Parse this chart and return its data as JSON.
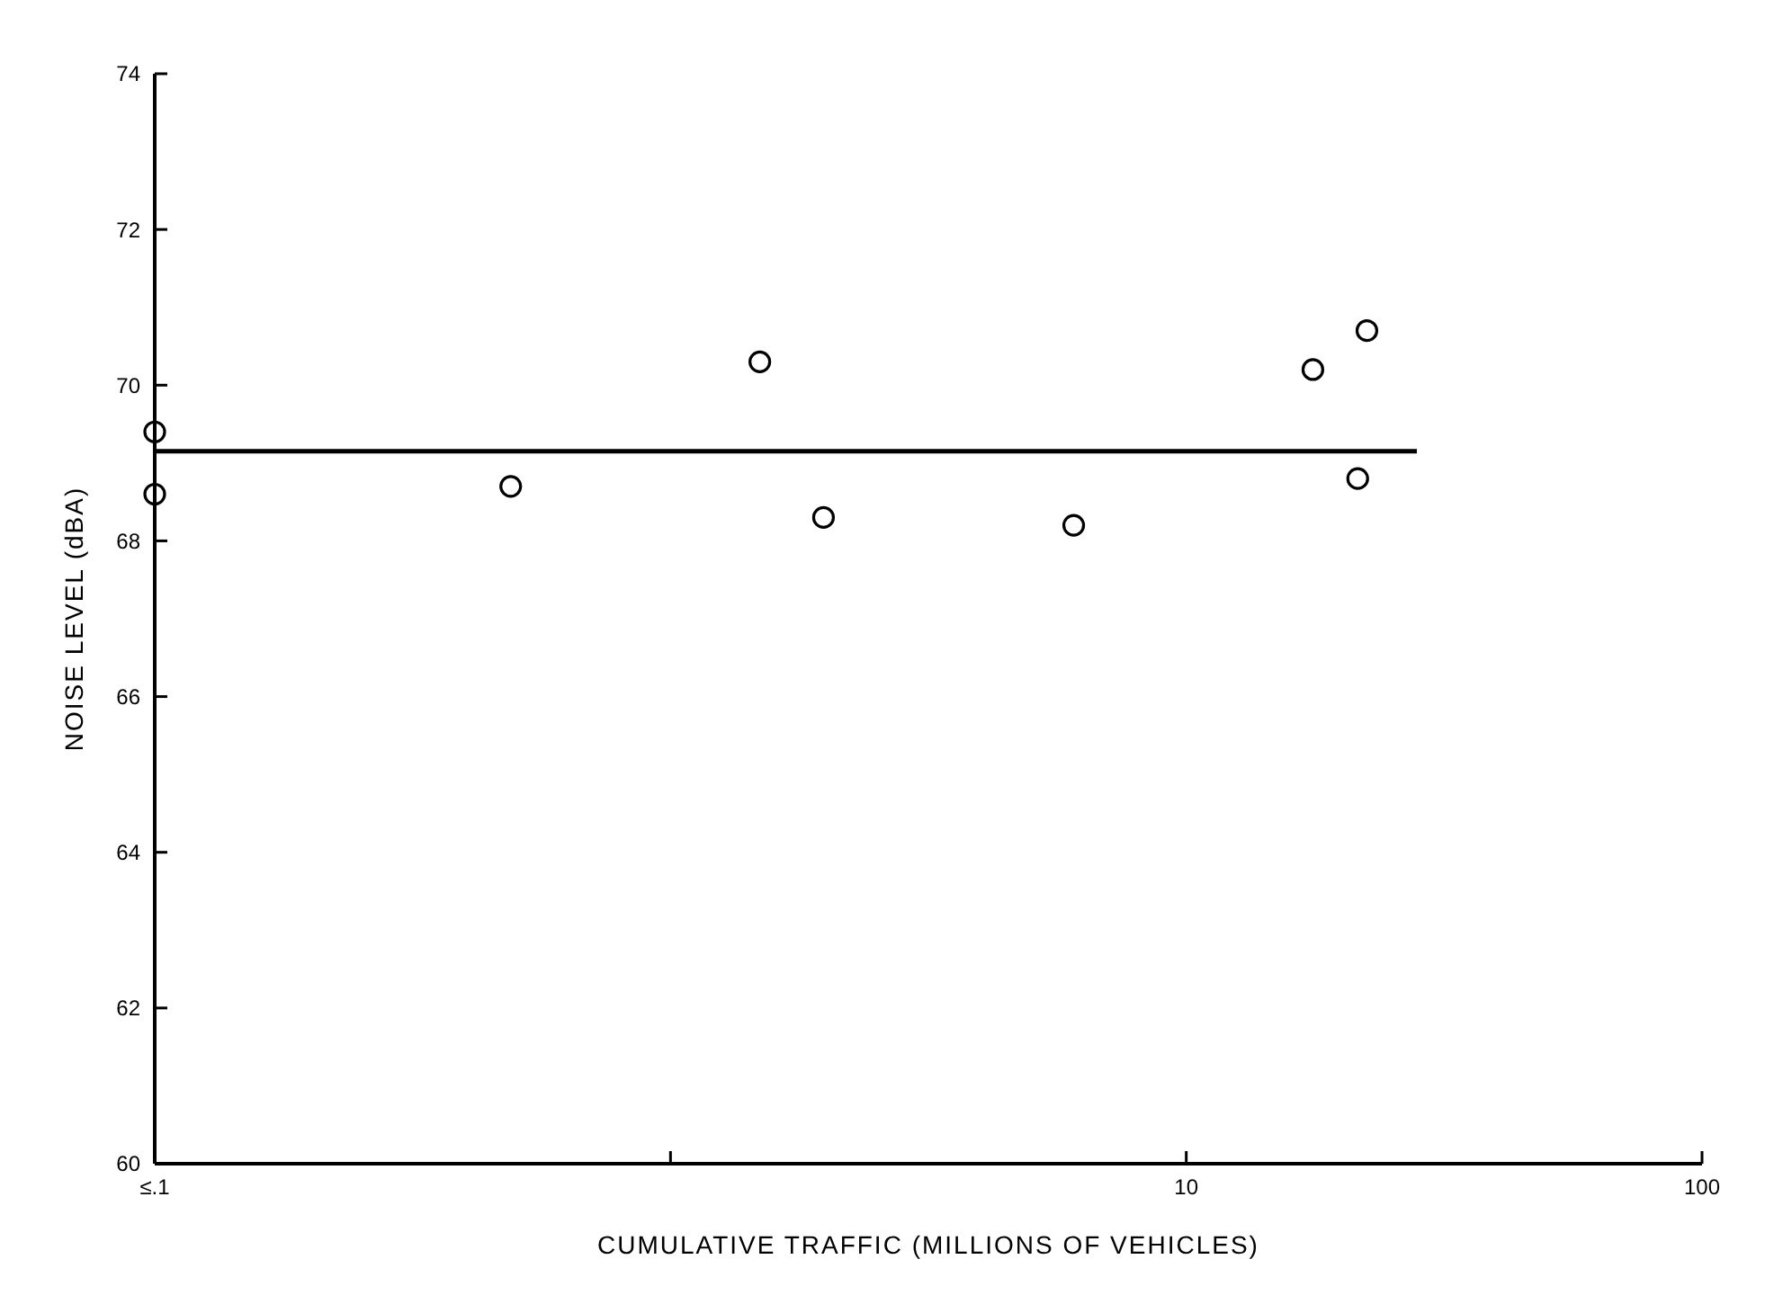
{
  "chart_data": {
    "type": "scatter",
    "xlabel": "CUMULATIVE TRAFFIC (MILLIONS OF VEHICLES)",
    "ylabel": "NOISE LEVEL (dBA)",
    "log": "x",
    "xlim": [
      0.1,
      100
    ],
    "xticks": [
      {
        "value": 0.1,
        "label": "≤.1"
      },
      {
        "value": 1,
        "label": null
      },
      10,
      100
    ],
    "ylim": [
      60,
      74
    ],
    "yticks": [
      60,
      62,
      64,
      66,
      68,
      70,
      72,
      74
    ],
    "grid": false,
    "marker": "circle",
    "series": [
      {
        "color": "#000000",
        "x": [
          0.1,
          0.1,
          0.49,
          1.49,
          1.98,
          6.05,
          17.6,
          22.4,
          21.5
        ],
        "values": [
          69.4,
          68.6,
          68.7,
          70.3,
          68.3,
          68.2,
          70.2,
          70.7,
          68.8
        ]
      },
      {
        "type": "line",
        "color": "#000000",
        "x": [
          0.1,
          28
        ],
        "values": [
          69.15,
          69.15
        ],
        "line_style": "solid",
        "marker": "none"
      }
    ]
  }
}
